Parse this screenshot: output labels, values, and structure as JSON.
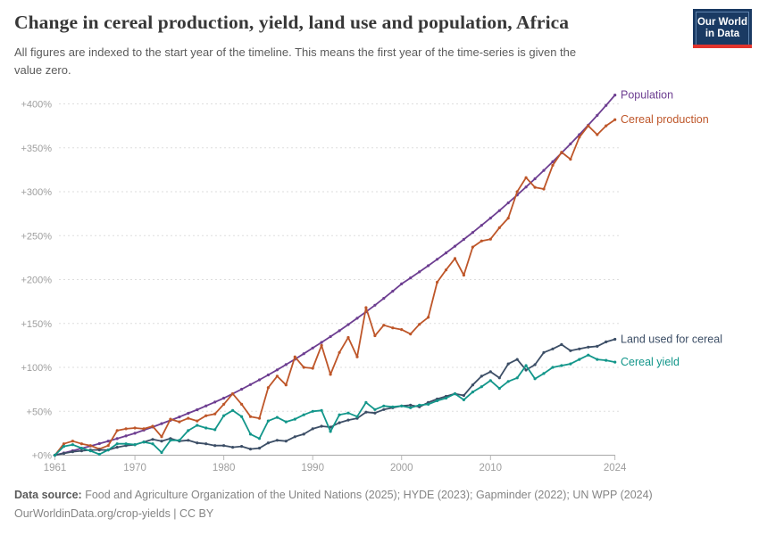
{
  "header": {
    "title": "Change in cereal production, yield, land use and population, Africa",
    "subtitle_line1": "All figures are indexed to the start year of the timeline. This means the first year of the time-series is given the",
    "subtitle_line2": "value zero.",
    "logo": {
      "line1": "Our World",
      "line2": "in Data"
    }
  },
  "footer": {
    "source_label": "Data source:",
    "source_text": " Food and Agriculture Organization of the United Nations (2025); HYDE (2023); Gapminder (2022); UN WPP (2024)",
    "link_text": "OurWorldinData.org/crop-yields | CC BY"
  },
  "chart_data": {
    "type": "line",
    "title": "Change in cereal production, yield, land use and population, Africa",
    "xlabel": "",
    "ylabel": "",
    "xlim": [
      1961,
      2024
    ],
    "ylim": [
      0,
      400
    ],
    "grid": "horizontal-dashed",
    "legend_position": "right-of-line-ends",
    "xticks": [
      1961,
      1970,
      1980,
      1990,
      2000,
      2010,
      2024
    ],
    "ytick_labels": [
      "+0%",
      "+50%",
      "+100%",
      "+150%",
      "+200%",
      "+250%",
      "+300%",
      "+350%",
      "+400%"
    ],
    "yticks": [
      0,
      50,
      100,
      150,
      200,
      250,
      300,
      350,
      400
    ],
    "x": [
      1961,
      1962,
      1963,
      1964,
      1965,
      1966,
      1967,
      1968,
      1969,
      1970,
      1971,
      1972,
      1973,
      1974,
      1975,
      1976,
      1977,
      1978,
      1979,
      1980,
      1981,
      1982,
      1983,
      1984,
      1985,
      1986,
      1987,
      1988,
      1989,
      1990,
      1991,
      1992,
      1993,
      1994,
      1995,
      1996,
      1997,
      1998,
      1999,
      2000,
      2001,
      2002,
      2003,
      2004,
      2005,
      2006,
      2007,
      2008,
      2009,
      2010,
      2011,
      2012,
      2013,
      2014,
      2015,
      2016,
      2017,
      2018,
      2019,
      2020,
      2021,
      2022,
      2023,
      2024
    ],
    "series": [
      {
        "name": "Population",
        "color": "#6D3E91",
        "values": [
          0,
          2.5,
          5.1,
          7.7,
          10.4,
          13.2,
          16,
          18.9,
          21.9,
          25,
          28.5,
          32.1,
          35.9,
          39.7,
          43.6,
          47.7,
          51.8,
          56.1,
          60.5,
          65,
          70,
          75.1,
          80.4,
          85.8,
          91.4,
          97.2,
          103.1,
          109.2,
          115.5,
          122,
          128.4,
          135,
          141.7,
          148.7,
          155.9,
          163.2,
          170.8,
          178.6,
          186.7,
          195,
          201.8,
          208.7,
          215.7,
          223,
          230.4,
          238,
          245.7,
          253.6,
          261.7,
          270,
          278.5,
          287.3,
          296.2,
          305.4,
          314.7,
          324.3,
          334.1,
          344.2,
          354.4,
          365,
          375.8,
          386.9,
          398.3,
          410
        ]
      },
      {
        "name": "Cereal production",
        "color": "#BE5629",
        "values": [
          0,
          13,
          16,
          13,
          11,
          7,
          11,
          28,
          30,
          31,
          30,
          33,
          21,
          41,
          38,
          42,
          39,
          45,
          47,
          58,
          70,
          58,
          44,
          42,
          77,
          90,
          80,
          112,
          100,
          99,
          125,
          92,
          117,
          134,
          112,
          168,
          136,
          148,
          145,
          143,
          138,
          149,
          157,
          197,
          211,
          224,
          205,
          237,
          244,
          246,
          259,
          270,
          300,
          316,
          305,
          303,
          330,
          345,
          337,
          362,
          375,
          365,
          375,
          382
        ]
      },
      {
        "name": "Land used for cereal",
        "color": "#3C4E66",
        "values": [
          0,
          2,
          4,
          5,
          6,
          6,
          6,
          9,
          11,
          12,
          15,
          18,
          16,
          19,
          16,
          17,
          14,
          13,
          11,
          11,
          9,
          10,
          7,
          8,
          14,
          17,
          16,
          21,
          24,
          30,
          33,
          32,
          37,
          40,
          42,
          49,
          48,
          52,
          54,
          56,
          57,
          55,
          60,
          64,
          67,
          70,
          68,
          80,
          90,
          95,
          88,
          104,
          109,
          97,
          103,
          117,
          121,
          126,
          119,
          121,
          123,
          124,
          129,
          132
        ]
      },
      {
        "name": "Cereal yield",
        "color": "#12968A",
        "values": [
          0,
          10,
          12,
          8,
          5,
          1,
          6,
          13,
          13,
          12,
          15,
          13,
          3,
          17,
          17,
          28,
          34,
          31,
          29,
          45,
          51,
          44,
          24,
          19,
          39,
          43,
          38,
          41,
          46,
          50,
          51,
          27,
          46,
          48,
          44,
          60,
          52,
          56,
          55,
          56,
          54,
          57,
          58,
          62,
          65,
          70,
          63,
          72,
          78,
          85,
          76,
          84,
          88,
          102,
          87,
          93,
          100,
          102,
          104,
          109,
          114,
          109,
          108,
          106
        ]
      }
    ]
  }
}
